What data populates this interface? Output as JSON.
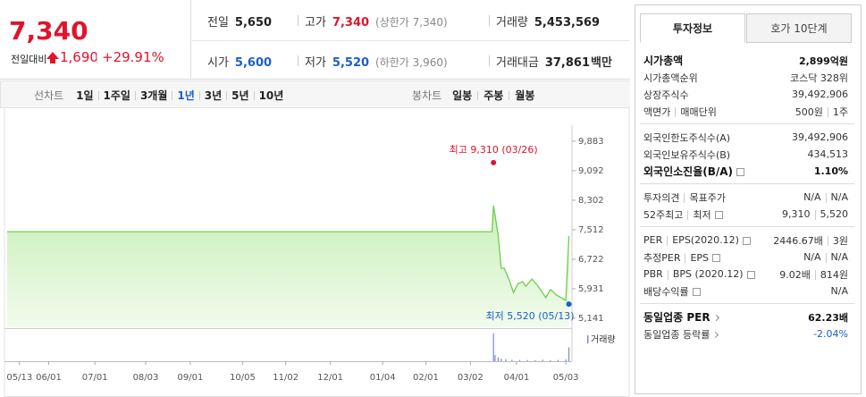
{
  "quote": {
    "price": "7,340",
    "change_label": "전일대비",
    "change": "1,690",
    "change_pct": "+29.91%"
  },
  "summary": [
    [
      {
        "label": "전일",
        "value": "5,650",
        "color": "#222"
      },
      {
        "label": "고가",
        "value": "7,340",
        "note": "(상한가 7,340)",
        "color": "#e0142b"
      },
      {
        "label": "거래량",
        "value": "5,453,569",
        "color": "#222"
      }
    ],
    [
      {
        "label": "시가",
        "value": "5,600",
        "color": "#1a5fc9"
      },
      {
        "label": "저가",
        "value": "5,520",
        "note": "(하한가 3,960)",
        "color": "#1a5fc9"
      },
      {
        "label": "거래대금",
        "value": "37,861",
        "unit": "백만",
        "color": "#222"
      }
    ]
  ],
  "periods": {
    "line_label": "선차트",
    "line": [
      "1일",
      "1주일",
      "3개월",
      "1년",
      "3년",
      "5년",
      "10년"
    ],
    "selected": 3,
    "candle_label": "봉차트",
    "candle": [
      "일봉",
      "주봉",
      "월봉"
    ]
  },
  "chart_data": {
    "type": "line",
    "x": [
      -8,
      307,
      308,
      311,
      313,
      315,
      318,
      321,
      324,
      327,
      329,
      333,
      336,
      339,
      342,
      345,
      349,
      352,
      355,
      357
    ],
    "values": [
      7460,
      7460,
      8160,
      7390,
      6480,
      6480,
      6190,
      5830,
      6070,
      6120,
      6000,
      6190,
      6050,
      5880,
      5690,
      5910,
      5760,
      5690,
      5620,
      7340
    ],
    "color": "#6ccf4c",
    "xlim": [
      -8,
      359
    ],
    "xticks": [
      {
        "value": 0,
        "label": "05/13"
      },
      {
        "value": 19,
        "label": "06/01"
      },
      {
        "value": 49,
        "label": "07/01"
      },
      {
        "value": 82,
        "label": "08/03"
      },
      {
        "value": 111,
        "label": "09/01"
      },
      {
        "value": 145,
        "label": "10/05"
      },
      {
        "value": 173,
        "label": "11/02"
      },
      {
        "value": 202,
        "label": "12/01"
      },
      {
        "value": 236,
        "label": "01/04"
      },
      {
        "value": 264,
        "label": "02/01"
      },
      {
        "value": 293,
        "label": "03/02"
      },
      {
        "value": 323,
        "label": "04/01"
      },
      {
        "value": 355,
        "label": "05/03"
      }
    ],
    "ylim": [
      4900,
      10120
    ],
    "yticks": [
      {
        "value": 9883,
        "label": "9,883"
      },
      {
        "value": 9092,
        "label": "9,092"
      },
      {
        "value": 8302,
        "label": "8,302"
      },
      {
        "value": 7512,
        "label": "7,512"
      },
      {
        "value": 6722,
        "label": "6,722"
      },
      {
        "value": 5931,
        "label": "5,931"
      },
      {
        "value": 5141,
        "label": "5,141"
      }
    ],
    "max": {
      "label": "최고 9,310 (03/26)",
      "x": 308,
      "value": 9310,
      "color": "#e0142b"
    },
    "min": {
      "label": "최저 5,520 (05/13)",
      "x": 357,
      "value": 5520,
      "color": "#1a5fc9"
    },
    "volume": {
      "label": "거래량",
      "color": "#7d86d8",
      "ylim": [
        0,
        12000000
      ],
      "x": [
        308,
        309,
        311,
        313,
        316,
        320,
        325,
        330,
        335,
        340,
        345,
        350,
        355,
        357
      ],
      "values": [
        11000000,
        2500000,
        1500000,
        1000000,
        800000,
        600000,
        500000,
        500000,
        400000,
        600000,
        400000,
        500000,
        700000,
        5453569
      ]
    }
  },
  "info": {
    "tabs": [
      "투자정보",
      "호가 10단계"
    ],
    "active_tab": 0,
    "groups": [
      [
        {
          "label": [
            "시가총액"
          ],
          "value": [
            "2,899억원"
          ],
          "bold": true
        },
        {
          "label": [
            "시가총액순위"
          ],
          "value": [
            "코스닥 328위"
          ]
        },
        {
          "label": [
            "상장주식수"
          ],
          "value": [
            "39,492,906"
          ]
        },
        {
          "label": [
            "액면가",
            "매매단위"
          ],
          "value": [
            "500원",
            "1주"
          ]
        }
      ],
      [
        {
          "label": [
            "외국인한도주식수(A)"
          ],
          "value": [
            "39,492,906"
          ]
        },
        {
          "label": [
            "외국인보유주식수(B)"
          ],
          "value": [
            "434,513"
          ]
        },
        {
          "label": [
            "외국인소진율(B/A)"
          ],
          "help": true,
          "value": [
            "1.10%"
          ],
          "bold": true
        }
      ],
      [
        {
          "label": [
            "투자의견",
            "목표주가"
          ],
          "value": [
            "N/A",
            "N/A"
          ]
        },
        {
          "label": [
            "52주최고",
            "최저"
          ],
          "help": true,
          "value": [
            "9,310",
            "5,520"
          ]
        }
      ],
      [
        {
          "label": [
            "PER",
            "EPS(2020.12)"
          ],
          "help": true,
          "value": [
            "2446.67배",
            "3원"
          ]
        },
        {
          "label": [
            "추정PER",
            "EPS"
          ],
          "help": true,
          "value": [
            "N/A",
            "N/A"
          ]
        },
        {
          "label": [
            "PBR",
            "BPS (2020.12)"
          ],
          "help": true,
          "value": [
            "9.02배",
            "814원"
          ]
        },
        {
          "label": [
            "배당수익률"
          ],
          "help": true,
          "value": [
            "N/A"
          ]
        }
      ],
      [
        {
          "label": [
            "동일업종 PER"
          ],
          "arrow": true,
          "value": [
            "62.23배"
          ],
          "bold": true
        },
        {
          "label": [
            "동일업종 등락률"
          ],
          "arrow": true,
          "value": [
            "-2.04%"
          ],
          "value_color": "#1a5fc9"
        }
      ]
    ]
  }
}
